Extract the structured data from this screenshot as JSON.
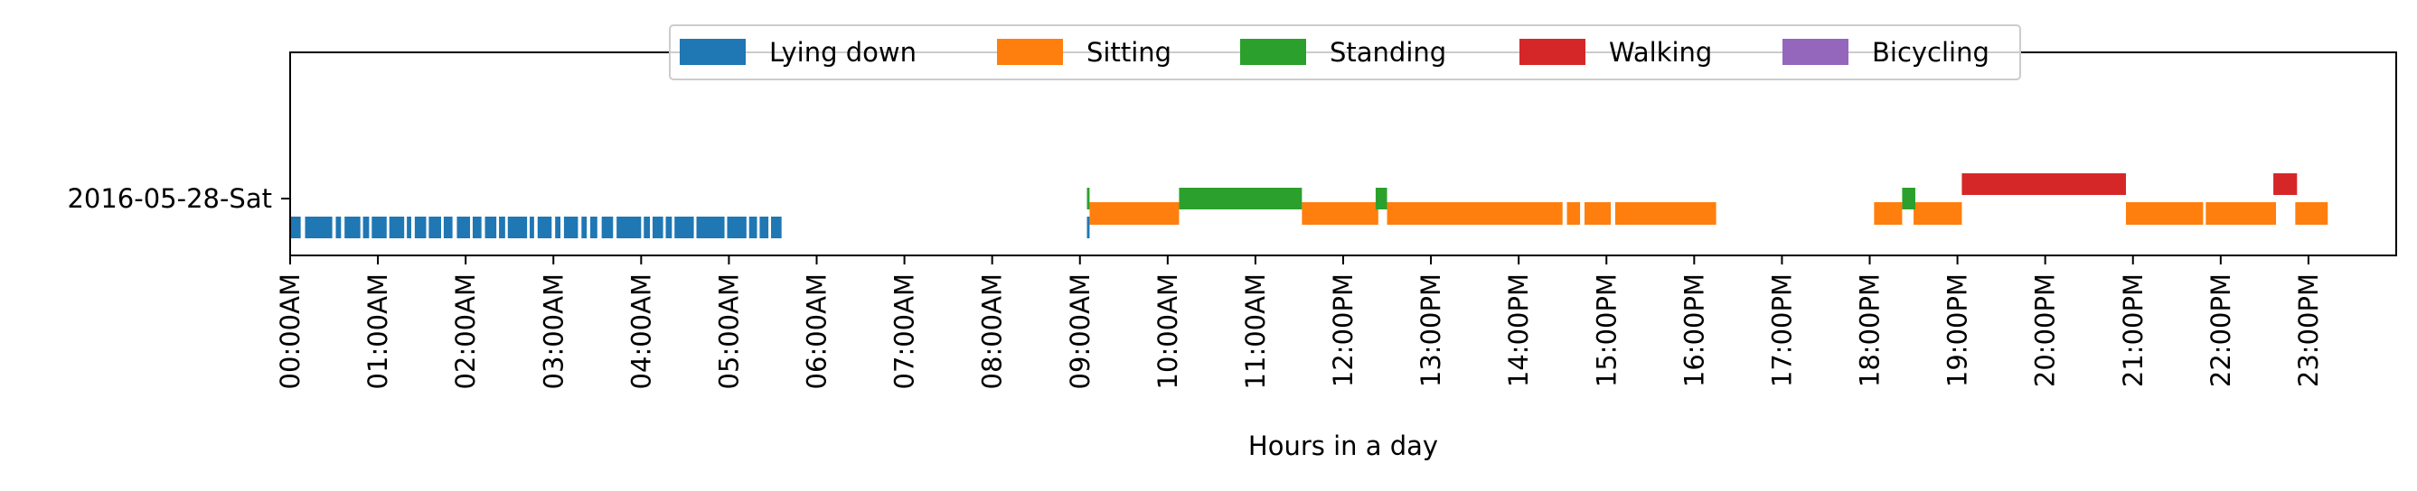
{
  "chart_data": {
    "type": "bar",
    "subtype": "horizontal-timeline",
    "title": "",
    "xlabel": "Hours in a day",
    "ylabel": "",
    "xlim": [
      0,
      24
    ],
    "grid": false,
    "legend": {
      "placement": "top-center"
    },
    "rows": [
      "2016-05-28-Sat"
    ],
    "x_ticks": [
      {
        "value": 0,
        "label": "00:00AM"
      },
      {
        "value": 1,
        "label": "01:00AM"
      },
      {
        "value": 2,
        "label": "02:00AM"
      },
      {
        "value": 3,
        "label": "03:00AM"
      },
      {
        "value": 4,
        "label": "04:00AM"
      },
      {
        "value": 5,
        "label": "05:00AM"
      },
      {
        "value": 6,
        "label": "06:00AM"
      },
      {
        "value": 7,
        "label": "07:00AM"
      },
      {
        "value": 8,
        "label": "08:00AM"
      },
      {
        "value": 9,
        "label": "09:00AM"
      },
      {
        "value": 10,
        "label": "10:00AM"
      },
      {
        "value": 11,
        "label": "11:00AM"
      },
      {
        "value": 12,
        "label": "12:00PM"
      },
      {
        "value": 13,
        "label": "13:00PM"
      },
      {
        "value": 14,
        "label": "14:00PM"
      },
      {
        "value": 15,
        "label": "15:00PM"
      },
      {
        "value": 16,
        "label": "16:00PM"
      },
      {
        "value": 17,
        "label": "17:00PM"
      },
      {
        "value": 18,
        "label": "18:00PM"
      },
      {
        "value": 19,
        "label": "19:00PM"
      },
      {
        "value": 20,
        "label": "20:00PM"
      },
      {
        "value": 21,
        "label": "21:00PM"
      },
      {
        "value": 22,
        "label": "22:00PM"
      },
      {
        "value": 23,
        "label": "23:00PM"
      }
    ],
    "series": [
      {
        "name": "Lying down",
        "color": "#1f77b4",
        "lane": 0,
        "segments": [
          [
            0.0,
            0.12
          ],
          [
            0.17,
            0.48
          ],
          [
            0.52,
            0.58
          ],
          [
            0.62,
            0.8
          ],
          [
            0.83,
            0.9
          ],
          [
            0.93,
            1.1
          ],
          [
            1.13,
            1.3
          ],
          [
            1.33,
            1.38
          ],
          [
            1.42,
            1.55
          ],
          [
            1.58,
            1.72
          ],
          [
            1.75,
            1.85
          ],
          [
            1.9,
            2.05
          ],
          [
            2.08,
            2.18
          ],
          [
            2.22,
            2.35
          ],
          [
            2.38,
            2.45
          ],
          [
            2.48,
            2.7
          ],
          [
            2.73,
            2.78
          ],
          [
            2.82,
            2.98
          ],
          [
            3.02,
            3.08
          ],
          [
            3.12,
            3.28
          ],
          [
            3.32,
            3.38
          ],
          [
            3.42,
            3.5
          ],
          [
            3.55,
            3.68
          ],
          [
            3.72,
            4.0
          ],
          [
            4.03,
            4.1
          ],
          [
            4.13,
            4.25
          ],
          [
            4.28,
            4.35
          ],
          [
            4.38,
            4.6
          ],
          [
            4.63,
            4.95
          ],
          [
            4.98,
            5.2
          ],
          [
            5.23,
            5.32
          ],
          [
            5.35,
            5.45
          ],
          [
            5.48,
            5.6
          ],
          [
            9.08,
            9.11
          ]
        ]
      },
      {
        "name": "Sitting",
        "color": "#ff7f0e",
        "lane": 1,
        "segments": [
          [
            9.11,
            10.13
          ],
          [
            11.53,
            12.4
          ],
          [
            12.5,
            14.5
          ],
          [
            14.55,
            14.7
          ],
          [
            14.75,
            15.05
          ],
          [
            15.1,
            16.25
          ],
          [
            18.05,
            18.37
          ],
          [
            18.5,
            19.05
          ],
          [
            20.92,
            21.8
          ],
          [
            21.83,
            22.63
          ],
          [
            22.85,
            23.22
          ]
        ]
      },
      {
        "name": "Standing",
        "color": "#2ca02c",
        "lane": 2,
        "segments": [
          [
            9.08,
            9.11
          ],
          [
            10.13,
            11.53
          ],
          [
            12.37,
            12.5
          ],
          [
            18.37,
            18.52
          ]
        ]
      },
      {
        "name": "Walking",
        "color": "#d62728",
        "lane": 3,
        "segments": [
          [
            19.05,
            20.92
          ],
          [
            22.6,
            22.87
          ]
        ]
      },
      {
        "name": "Bicycling",
        "color": "#9467bd",
        "lane": 4,
        "segments": []
      }
    ]
  }
}
